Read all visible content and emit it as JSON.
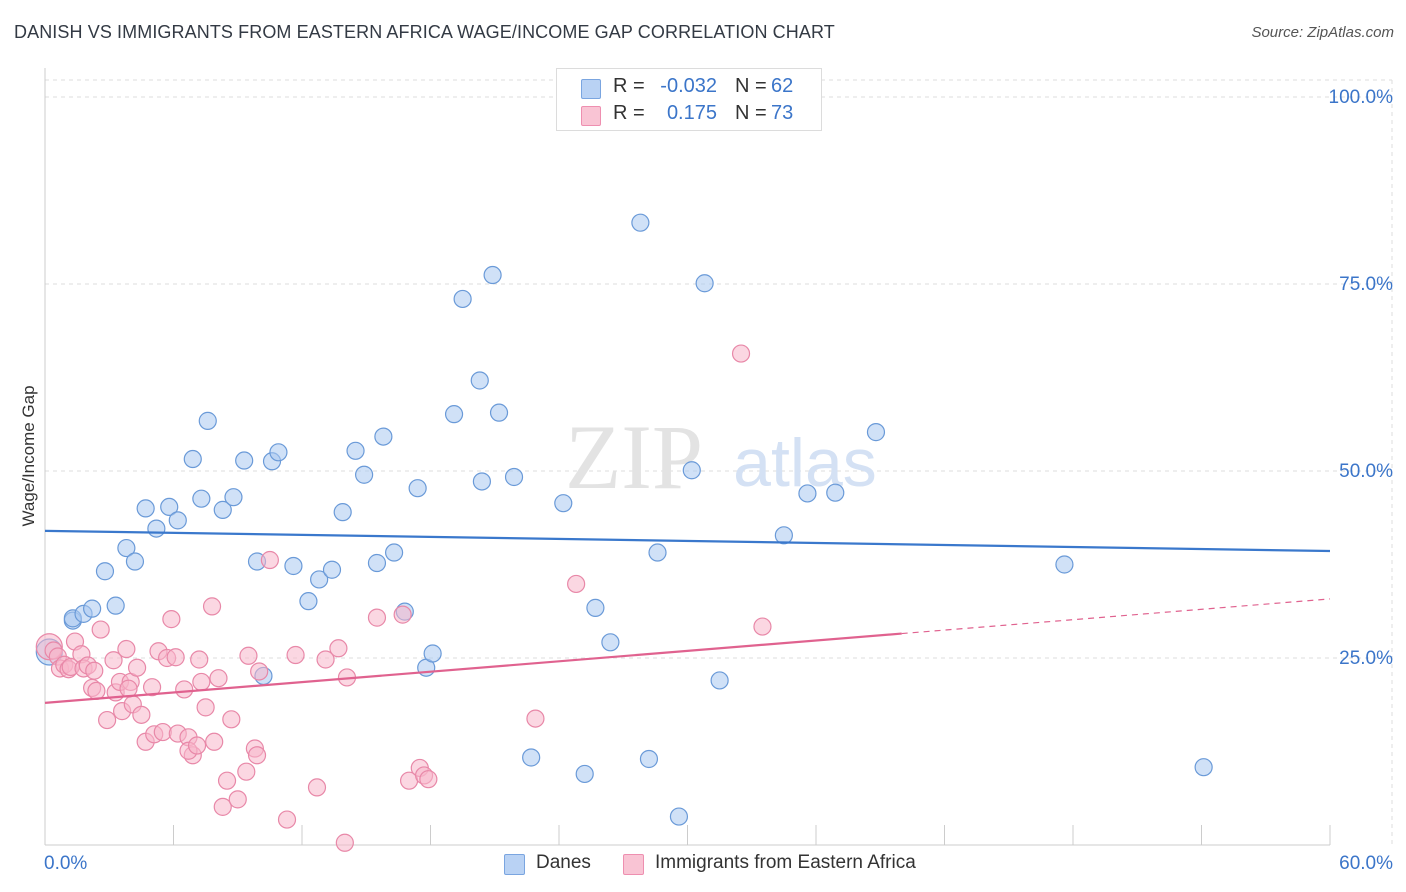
{
  "title": "DANISH VS IMMIGRANTS FROM EASTERN AFRICA WAGE/INCOME GAP CORRELATION CHART",
  "source": "Source: ZipAtlas.com",
  "watermark": {
    "zip": "ZIP",
    "atlas": "atlas"
  },
  "legend": {
    "r_label": "R =",
    "n_label": "N =",
    "rows": [
      {
        "r": "-0.032",
        "n": "62",
        "color": "#b9d2f4",
        "stroke": "#7aa5e0"
      },
      {
        "r": "0.175",
        "n": "73",
        "color": "#f9c4d4",
        "stroke": "#ee8fb0"
      }
    ]
  },
  "bottom_legend": {
    "danes": "Danes",
    "immigrants": "Immigrants from Eastern Africa"
  },
  "colors": {
    "danes_fill": "#a9c8f0",
    "danes_stroke": "#6a9ad8",
    "danes_line": "#3a78cc",
    "imm_fill": "#f7b6ca",
    "imm_stroke": "#e888a8",
    "imm_line": "#e0628f",
    "grid": "#dddddd",
    "axis_text": "#3b75c9"
  },
  "chart_data": {
    "type": "scatter",
    "title": "DANISH VS IMMIGRANTS FROM EASTERN AFRICA WAGE/INCOME GAP CORRELATION CHART",
    "xlabel": "",
    "ylabel": "Wage/Income Gap",
    "xlim": [
      0,
      60
    ],
    "ylim": [
      0,
      100
    ],
    "x_tick_labels": [
      "0.0%",
      "60.0%"
    ],
    "y_ticks": [
      25,
      50,
      75,
      100
    ],
    "y_tick_labels": [
      "25.0%",
      "50.0%",
      "75.0%",
      "100.0%"
    ],
    "grid": true,
    "legend_position": "top-center",
    "series": [
      {
        "name": "Danes",
        "r": -0.032,
        "n": 62,
        "trend": {
          "x": [
            0,
            60
          ],
          "y": [
            42.0,
            39.3
          ],
          "dashed_from": null
        },
        "points": [
          [
            0.2,
            25.8
          ],
          [
            1.3,
            30.0
          ],
          [
            1.3,
            30.3
          ],
          [
            1.8,
            30.9
          ],
          [
            2.2,
            31.6
          ],
          [
            2.8,
            36.6
          ],
          [
            3.3,
            32.0
          ],
          [
            3.8,
            39.7
          ],
          [
            4.2,
            37.9
          ],
          [
            4.7,
            45.0
          ],
          [
            5.2,
            42.3
          ],
          [
            5.8,
            45.2
          ],
          [
            6.2,
            43.4
          ],
          [
            6.9,
            51.6
          ],
          [
            7.3,
            46.3
          ],
          [
            7.6,
            56.7
          ],
          [
            8.3,
            44.8
          ],
          [
            8.8,
            46.5
          ],
          [
            9.3,
            51.4
          ],
          [
            9.9,
            37.9
          ],
          [
            10.6,
            51.3
          ],
          [
            10.9,
            52.5
          ],
          [
            11.6,
            37.3
          ],
          [
            12.3,
            32.6
          ],
          [
            12.8,
            35.5
          ],
          [
            13.4,
            36.8
          ],
          [
            13.9,
            44.5
          ],
          [
            14.5,
            52.7
          ],
          [
            14.9,
            49.5
          ],
          [
            15.5,
            37.7
          ],
          [
            15.8,
            54.6
          ],
          [
            16.3,
            39.1
          ],
          [
            16.8,
            31.2
          ],
          [
            17.4,
            47.7
          ],
          [
            17.8,
            23.7
          ],
          [
            18.1,
            25.6
          ],
          [
            19.1,
            57.6
          ],
          [
            19.5,
            73.0
          ],
          [
            20.3,
            62.1
          ],
          [
            20.4,
            48.6
          ],
          [
            20.9,
            76.2
          ],
          [
            21.2,
            57.8
          ],
          [
            21.9,
            49.2
          ],
          [
            22.7,
            11.7
          ],
          [
            24.2,
            45.7
          ],
          [
            25.2,
            9.5
          ],
          [
            25.7,
            31.7
          ],
          [
            26.4,
            27.1
          ],
          [
            27.8,
            83.2
          ],
          [
            28.2,
            11.5
          ],
          [
            28.6,
            39.1
          ],
          [
            29.6,
            3.8
          ],
          [
            30.2,
            50.1
          ],
          [
            30.8,
            75.1
          ],
          [
            31.5,
            22.0
          ],
          [
            34.5,
            41.4
          ],
          [
            35.6,
            47.0
          ],
          [
            36.9,
            47.1
          ],
          [
            38.8,
            55.2
          ],
          [
            47.6,
            37.5
          ],
          [
            54.1,
            10.4
          ],
          [
            10.2,
            22.6
          ]
        ]
      },
      {
        "name": "Immigrants from Eastern Africa",
        "r": 0.175,
        "n": 73,
        "trend": {
          "x": [
            0,
            60
          ],
          "y": [
            19.0,
            32.9
          ],
          "dashed_from": 40.0
        },
        "points": [
          [
            0.2,
            26.5
          ],
          [
            0.4,
            26.0
          ],
          [
            0.6,
            25.2
          ],
          [
            0.7,
            23.6
          ],
          [
            0.9,
            24.1
          ],
          [
            1.1,
            23.5
          ],
          [
            1.2,
            23.8
          ],
          [
            1.4,
            27.2
          ],
          [
            1.7,
            25.5
          ],
          [
            1.8,
            23.6
          ],
          [
            2.0,
            24.0
          ],
          [
            2.2,
            21.0
          ],
          [
            2.4,
            20.6
          ],
          [
            2.6,
            28.8
          ],
          [
            2.9,
            16.7
          ],
          [
            3.2,
            24.7
          ],
          [
            3.3,
            20.4
          ],
          [
            3.5,
            21.8
          ],
          [
            3.6,
            17.9
          ],
          [
            3.8,
            26.2
          ],
          [
            4.0,
            21.8
          ],
          [
            4.1,
            18.8
          ],
          [
            4.3,
            23.7
          ],
          [
            4.5,
            17.4
          ],
          [
            4.7,
            13.8
          ],
          [
            5.0,
            21.1
          ],
          [
            5.1,
            14.8
          ],
          [
            5.3,
            25.9
          ],
          [
            5.5,
            15.1
          ],
          [
            5.7,
            25.0
          ],
          [
            5.9,
            30.2
          ],
          [
            6.1,
            25.1
          ],
          [
            6.2,
            14.9
          ],
          [
            6.5,
            20.8
          ],
          [
            6.7,
            14.4
          ],
          [
            6.9,
            12.0
          ],
          [
            7.2,
            24.8
          ],
          [
            7.3,
            21.8
          ],
          [
            7.5,
            18.4
          ],
          [
            7.8,
            31.9
          ],
          [
            7.9,
            13.8
          ],
          [
            8.1,
            22.3
          ],
          [
            8.3,
            5.1
          ],
          [
            8.5,
            8.6
          ],
          [
            8.7,
            16.8
          ],
          [
            9.0,
            6.1
          ],
          [
            9.4,
            9.8
          ],
          [
            9.5,
            25.3
          ],
          [
            9.8,
            12.9
          ],
          [
            10.0,
            23.2
          ],
          [
            10.5,
            38.1
          ],
          [
            11.3,
            3.4
          ],
          [
            11.7,
            25.4
          ],
          [
            12.7,
            7.7
          ],
          [
            13.1,
            24.8
          ],
          [
            13.7,
            26.3
          ],
          [
            14.1,
            22.4
          ],
          [
            14.0,
            0.3
          ],
          [
            15.5,
            30.4
          ],
          [
            16.7,
            30.8
          ],
          [
            17.0,
            8.6
          ],
          [
            17.5,
            10.3
          ],
          [
            17.7,
            9.3
          ],
          [
            17.9,
            8.8
          ],
          [
            22.9,
            16.9
          ],
          [
            24.8,
            34.9
          ],
          [
            32.5,
            65.7
          ],
          [
            33.5,
            29.2
          ],
          [
            6.7,
            12.6
          ],
          [
            7.1,
            13.3
          ],
          [
            9.9,
            12.0
          ],
          [
            3.9,
            20.9
          ],
          [
            2.3,
            23.3
          ]
        ]
      }
    ]
  }
}
